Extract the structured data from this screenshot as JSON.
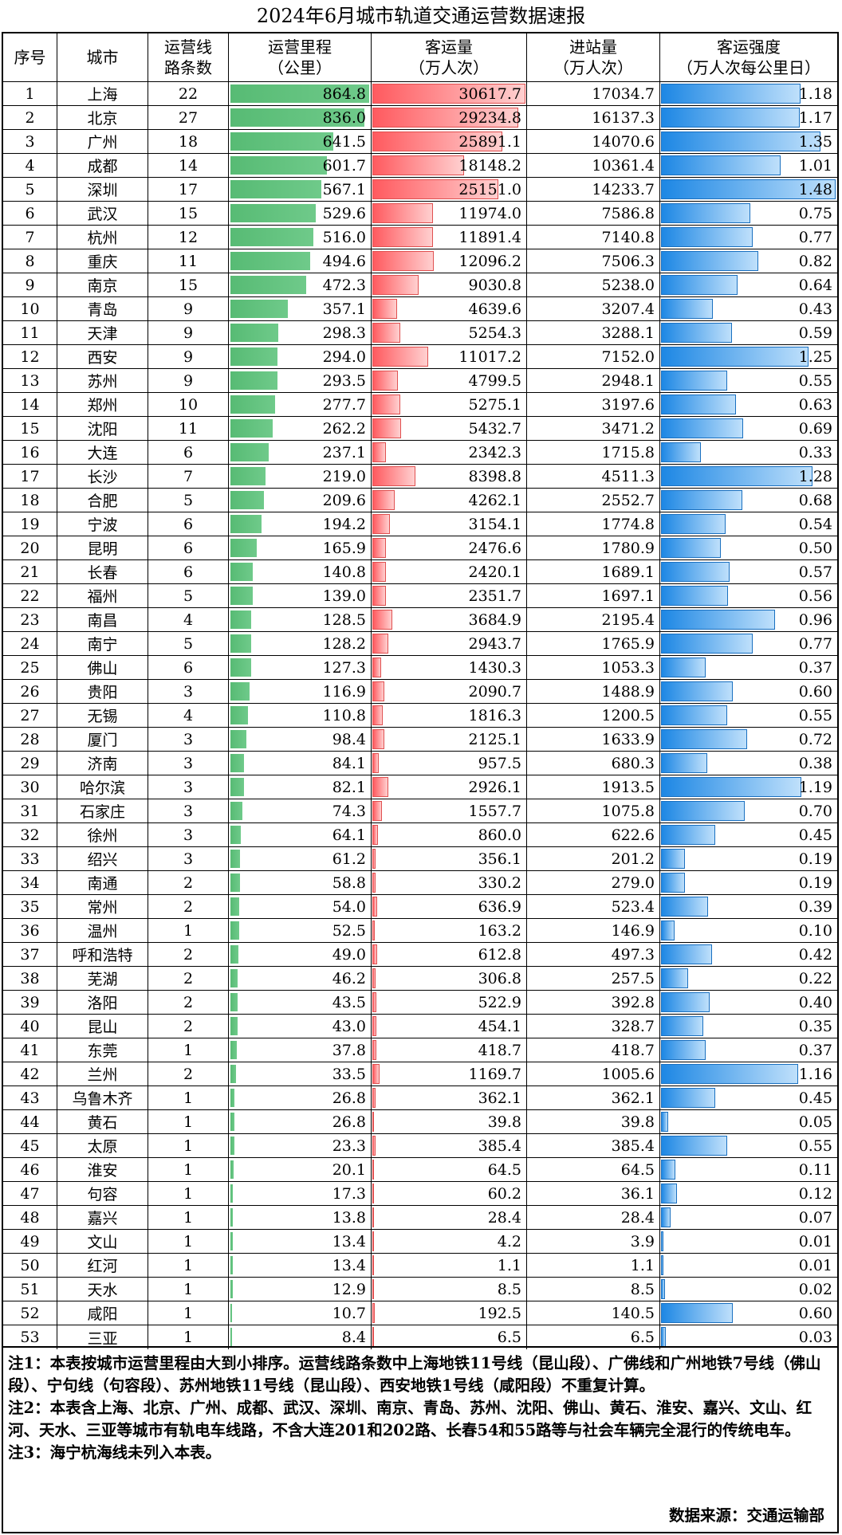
{
  "title": "2024年6月城市轨道交通运营数据速报",
  "table": {
    "headers": [
      [
        "序号"
      ],
      [
        "城市"
      ],
      [
        "运营线",
        "路条数"
      ],
      [
        "运营里程",
        "（公里）"
      ],
      [
        "客运量",
        "（万人次）"
      ],
      [
        "进站量",
        "（万人次）"
      ],
      [
        "客运强度",
        "（万人次每公里日）"
      ]
    ],
    "rows": [
      [
        "1",
        "上海",
        "22",
        "864.8",
        "30617.7",
        "17034.7",
        "1.18"
      ],
      [
        "2",
        "北京",
        "27",
        "836.0",
        "29234.8",
        "16137.3",
        "1.17"
      ],
      [
        "3",
        "广州",
        "18",
        "641.5",
        "25891.1",
        "14070.6",
        "1.35"
      ],
      [
        "4",
        "成都",
        "14",
        "601.7",
        "18148.2",
        "10361.4",
        "1.01"
      ],
      [
        "5",
        "深圳",
        "17",
        "567.1",
        "25151.0",
        "14233.7",
        "1.48"
      ],
      [
        "6",
        "武汉",
        "15",
        "529.6",
        "11974.0",
        "7586.8",
        "0.75"
      ],
      [
        "7",
        "杭州",
        "12",
        "516.0",
        "11891.4",
        "7140.8",
        "0.77"
      ],
      [
        "8",
        "重庆",
        "11",
        "494.6",
        "12096.2",
        "7506.3",
        "0.82"
      ],
      [
        "9",
        "南京",
        "15",
        "472.3",
        "9030.8",
        "5238.0",
        "0.64"
      ],
      [
        "10",
        "青岛",
        "9",
        "357.1",
        "4639.6",
        "3207.4",
        "0.43"
      ],
      [
        "11",
        "天津",
        "9",
        "298.3",
        "5254.3",
        "3288.1",
        "0.59"
      ],
      [
        "12",
        "西安",
        "9",
        "294.0",
        "11017.2",
        "7152.0",
        "1.25"
      ],
      [
        "13",
        "苏州",
        "9",
        "293.5",
        "4799.5",
        "2948.1",
        "0.55"
      ],
      [
        "14",
        "郑州",
        "10",
        "277.7",
        "5275.1",
        "3197.6",
        "0.63"
      ],
      [
        "15",
        "沈阳",
        "11",
        "262.2",
        "5432.7",
        "3471.2",
        "0.69"
      ],
      [
        "16",
        "大连",
        "6",
        "237.1",
        "2342.3",
        "1715.8",
        "0.33"
      ],
      [
        "17",
        "长沙",
        "7",
        "219.0",
        "8398.8",
        "4511.3",
        "1.28"
      ],
      [
        "18",
        "合肥",
        "5",
        "209.6",
        "4262.1",
        "2552.7",
        "0.68"
      ],
      [
        "19",
        "宁波",
        "6",
        "194.2",
        "3154.1",
        "1774.8",
        "0.54"
      ],
      [
        "20",
        "昆明",
        "6",
        "165.9",
        "2476.6",
        "1780.9",
        "0.50"
      ],
      [
        "21",
        "长春",
        "6",
        "140.8",
        "2420.1",
        "1689.1",
        "0.57"
      ],
      [
        "22",
        "福州",
        "5",
        "139.0",
        "2351.7",
        "1697.1",
        "0.56"
      ],
      [
        "23",
        "南昌",
        "4",
        "128.5",
        "3684.9",
        "2195.4",
        "0.96"
      ],
      [
        "24",
        "南宁",
        "5",
        "128.2",
        "2943.7",
        "1765.9",
        "0.77"
      ],
      [
        "25",
        "佛山",
        "6",
        "127.3",
        "1430.3",
        "1053.3",
        "0.37"
      ],
      [
        "26",
        "贵阳",
        "3",
        "116.9",
        "2090.7",
        "1488.9",
        "0.60"
      ],
      [
        "27",
        "无锡",
        "4",
        "110.8",
        "1816.3",
        "1200.5",
        "0.55"
      ],
      [
        "28",
        "厦门",
        "3",
        "98.4",
        "2125.1",
        "1633.9",
        "0.72"
      ],
      [
        "29",
        "济南",
        "3",
        "84.1",
        "957.5",
        "680.3",
        "0.38"
      ],
      [
        "30",
        "哈尔滨",
        "3",
        "82.1",
        "2926.1",
        "1913.5",
        "1.19"
      ],
      [
        "31",
        "石家庄",
        "3",
        "74.3",
        "1557.7",
        "1075.8",
        "0.70"
      ],
      [
        "32",
        "徐州",
        "3",
        "64.1",
        "860.0",
        "622.6",
        "0.45"
      ],
      [
        "33",
        "绍兴",
        "3",
        "61.2",
        "356.1",
        "201.2",
        "0.19"
      ],
      [
        "34",
        "南通",
        "2",
        "58.8",
        "330.2",
        "279.0",
        "0.19"
      ],
      [
        "35",
        "常州",
        "2",
        "54.0",
        "636.9",
        "523.4",
        "0.39"
      ],
      [
        "36",
        "温州",
        "1",
        "52.5",
        "163.2",
        "146.9",
        "0.10"
      ],
      [
        "37",
        "呼和浩特",
        "2",
        "49.0",
        "612.8",
        "497.3",
        "0.42"
      ],
      [
        "38",
        "芜湖",
        "2",
        "46.2",
        "306.8",
        "257.5",
        "0.22"
      ],
      [
        "39",
        "洛阳",
        "2",
        "43.5",
        "522.9",
        "392.8",
        "0.40"
      ],
      [
        "40",
        "昆山",
        "2",
        "43.0",
        "454.1",
        "328.7",
        "0.35"
      ],
      [
        "41",
        "东莞",
        "1",
        "37.8",
        "418.7",
        "418.7",
        "0.37"
      ],
      [
        "42",
        "兰州",
        "2",
        "33.5",
        "1169.7",
        "1005.6",
        "1.16"
      ],
      [
        "43",
        "乌鲁木齐",
        "1",
        "26.8",
        "362.1",
        "362.1",
        "0.45"
      ],
      [
        "44",
        "黄石",
        "1",
        "26.8",
        "39.8",
        "39.8",
        "0.05"
      ],
      [
        "45",
        "太原",
        "1",
        "23.3",
        "385.4",
        "385.4",
        "0.55"
      ],
      [
        "46",
        "淮安",
        "1",
        "20.1",
        "64.5",
        "64.5",
        "0.11"
      ],
      [
        "47",
        "句容",
        "1",
        "17.3",
        "60.2",
        "36.1",
        "0.12"
      ],
      [
        "48",
        "嘉兴",
        "1",
        "13.8",
        "28.4",
        "28.4",
        "0.07"
      ],
      [
        "49",
        "文山",
        "1",
        "13.4",
        "4.2",
        "3.9",
        "0.01"
      ],
      [
        "50",
        "红河",
        "1",
        "13.4",
        "1.1",
        "1.1",
        "0.01"
      ],
      [
        "51",
        "天水",
        "1",
        "12.9",
        "8.5",
        "8.5",
        "0.02"
      ],
      [
        "52",
        "咸阳",
        "1",
        "10.7",
        "192.5",
        "140.5",
        "0.60"
      ],
      [
        "53",
        "三亚",
        "1",
        "8.4",
        "6.5",
        "6.5",
        "0.03"
      ]
    ]
  },
  "notes": [
    "注1：本表按城市运营里程由大到小排序。运营线路条数中上海地铁11号线（昆山段）、广佛线和广州地铁7号线（佛山段）、宁句线（句容段）、苏州地铁11号线（昆山段）、西安地铁1号线（咸阳段）不重复计算。",
    "注2：本表含上海、北京、广州、成都、武汉、深圳、南京、青岛、苏州、沈阳、佛山、黄石、淮安、嘉兴、文山、红河、天水、三亚等城市有轨电车线路，不含大连201和202路、长春54和55路等与社会车辆完全混行的传统电车。",
    "注3：海宁杭海线未列入本表。"
  ],
  "source": "数据来源：交通运输部"
}
